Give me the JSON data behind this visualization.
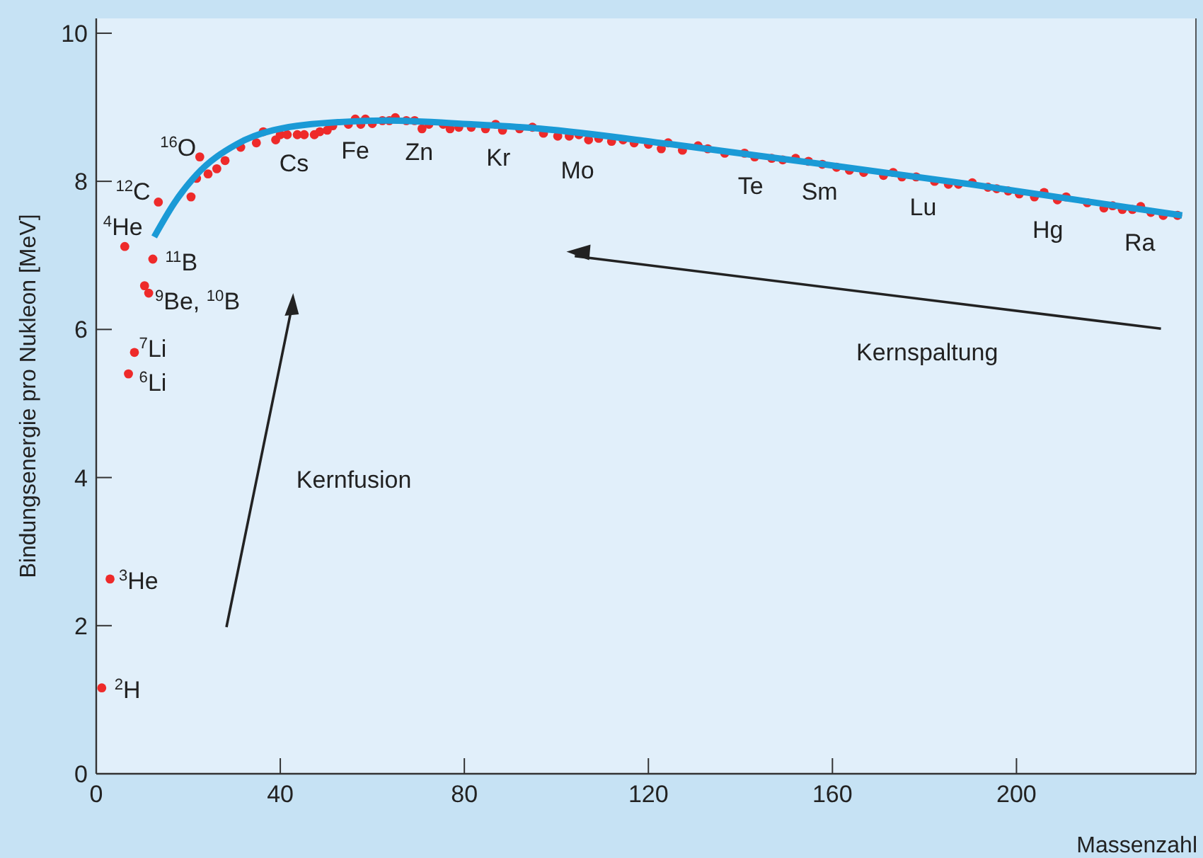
{
  "chart_data": {
    "type": "scatter",
    "xlabel": "Massenzahl",
    "ylabel": "Bindungsenergie pro Nukleon [MeV]",
    "xlim": [
      0,
      239
    ],
    "ylim": [
      0,
      10.2
    ],
    "xticks": [
      0,
      40,
      80,
      120,
      160,
      200
    ],
    "yticks": [
      0,
      2,
      4,
      6,
      8,
      10
    ],
    "grid": false,
    "series": [
      {
        "color": "#ee2a2a",
        "marker": "circle",
        "x": [
          1.2,
          3,
          7,
          8.3,
          10.5,
          11.4,
          12.3,
          6.2,
          13.5,
          22.5,
          20.6,
          21.8,
          24.3,
          26.2,
          28,
          31.4,
          34.8,
          36.3,
          39,
          40,
          41.5,
          43.7,
          45.2,
          47.4,
          48.6,
          50.2,
          51.4,
          54.8,
          56.3,
          57.5,
          58.5,
          60,
          62.2,
          63.7,
          65,
          67.4,
          69.2,
          70.8,
          72.3,
          75.4,
          76.9,
          78.8,
          81.5,
          84.6,
          86.8,
          88.3,
          92,
          94.8,
          97.2,
          100.3,
          102.8,
          104.9,
          107,
          109.2,
          112,
          114.5,
          116.9,
          120,
          122.8,
          124.3,
          127.4,
          130.8,
          132.9,
          136.6,
          140.9,
          143.1,
          146.8,
          149.2,
          152,
          154.8,
          157.8,
          160.9,
          163.7,
          166.8,
          171.1,
          173.2,
          175.1,
          178.2,
          182.2,
          185.2,
          187.4,
          190.4,
          193.8,
          195.7,
          198.2,
          200.6,
          203.9,
          206,
          208.9,
          210.8,
          215.4,
          219,
          220.9,
          223,
          225.2,
          227,
          229.2,
          231.9,
          235
        ],
        "values": [
          1.16,
          2.63,
          5.4,
          5.69,
          6.59,
          6.49,
          6.95,
          7.12,
          7.72,
          8.33,
          7.79,
          8.04,
          8.1,
          8.17,
          8.28,
          8.46,
          8.52,
          8.67,
          8.56,
          8.63,
          8.63,
          8.63,
          8.63,
          8.63,
          8.67,
          8.69,
          8.75,
          8.77,
          8.84,
          8.77,
          8.84,
          8.78,
          8.82,
          8.82,
          8.86,
          8.82,
          8.82,
          8.71,
          8.77,
          8.77,
          8.71,
          8.73,
          8.73,
          8.71,
          8.77,
          8.69,
          8.71,
          8.73,
          8.65,
          8.61,
          8.61,
          8.63,
          8.56,
          8.58,
          8.54,
          8.56,
          8.52,
          8.5,
          8.44,
          8.52,
          8.42,
          8.48,
          8.44,
          8.38,
          8.38,
          8.33,
          8.31,
          8.29,
          8.31,
          8.27,
          8.23,
          8.19,
          8.15,
          8.12,
          8.08,
          8.12,
          8.06,
          8.06,
          8,
          7.96,
          7.96,
          7.98,
          7.92,
          7.9,
          7.87,
          7.83,
          7.79,
          7.85,
          7.75,
          7.79,
          7.71,
          7.64,
          7.67,
          7.62,
          7.62,
          7.66,
          7.58,
          7.54,
          7.54
        ]
      },
      {
        "type": "line",
        "color": "#1a9ad6",
        "x": [
          12.6,
          17,
          21.8,
          30.5,
          38.5,
          52.9,
          63,
          81.5,
          94.8,
          125,
          158,
          190,
          236
        ],
        "values": [
          7.25,
          7.71,
          8.09,
          8.5,
          8.69,
          8.8,
          8.82,
          8.77,
          8.72,
          8.5,
          8.23,
          7.96,
          7.54
        ]
      }
    ],
    "annotations": [
      "$^{2}$H",
      "$^{3}$He",
      "$^{6}$Li",
      "$^{7}$Li",
      "$^{9}$Be, $^{10}$B",
      "$^{11}$B",
      "$^{4}$He",
      "$^{12}$C",
      "$^{16}$O",
      "Cs",
      "Fe",
      "Zn",
      "Kr",
      "Mo",
      "Te",
      "Sm",
      "Lu",
      "Hg",
      "Ra",
      "Kernfusion",
      "Kernspaltung"
    ]
  }
}
